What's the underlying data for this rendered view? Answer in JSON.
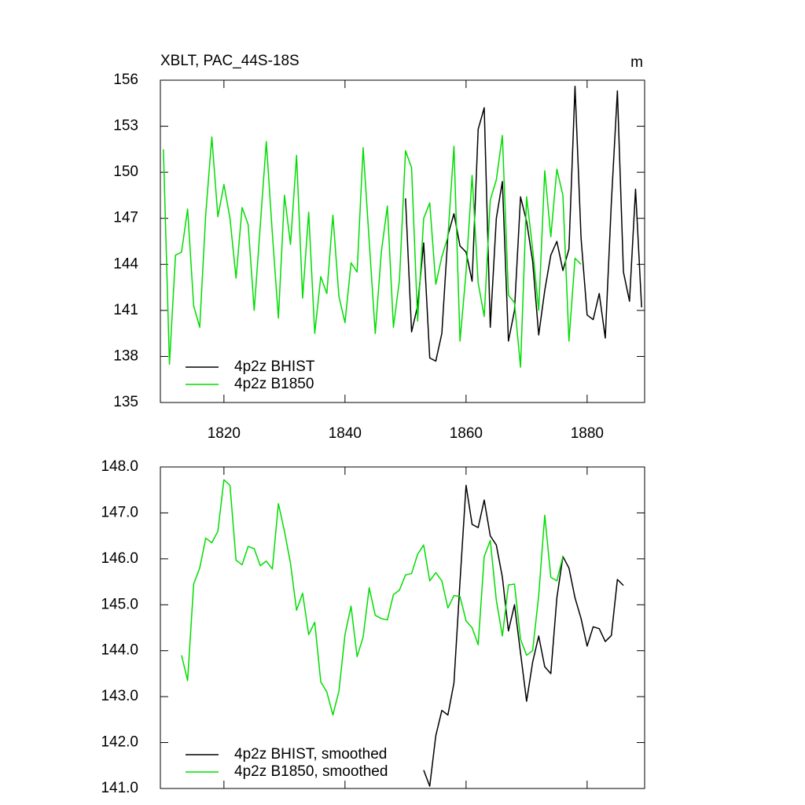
{
  "chart_data": [
    {
      "type": "line",
      "title": "XBLT, PAC_44S-18S",
      "y_units_label": "m",
      "x": [
        1810,
        1811,
        1812,
        1813,
        1814,
        1815,
        1816,
        1817,
        1818,
        1819,
        1820,
        1821,
        1822,
        1823,
        1824,
        1825,
        1826,
        1827,
        1828,
        1829,
        1830,
        1831,
        1832,
        1833,
        1834,
        1835,
        1836,
        1837,
        1838,
        1839,
        1840,
        1841,
        1842,
        1843,
        1844,
        1845,
        1846,
        1847,
        1848,
        1849,
        1850,
        1851,
        1852,
        1853,
        1854,
        1855,
        1856,
        1857,
        1858,
        1859,
        1860,
        1861,
        1862,
        1863,
        1864,
        1865,
        1866,
        1867,
        1868,
        1869,
        1870,
        1871,
        1872,
        1873,
        1874,
        1875,
        1876,
        1877,
        1878,
        1879,
        1880,
        1881,
        1882,
        1883,
        1884,
        1885,
        1886,
        1887,
        1888,
        1889
      ],
      "xlim": [
        1809.5,
        1889.5
      ],
      "xticks": [
        1820,
        1840,
        1860,
        1880
      ],
      "ylim": [
        135,
        156
      ],
      "yticks": [
        135,
        138,
        141,
        144,
        147,
        150,
        153,
        156
      ],
      "series": [
        {
          "name": "4p2z BHIST",
          "color": "#000000",
          "values": [
            null,
            null,
            null,
            null,
            null,
            null,
            null,
            null,
            null,
            null,
            null,
            null,
            null,
            null,
            null,
            null,
            null,
            null,
            null,
            null,
            null,
            null,
            null,
            null,
            null,
            null,
            null,
            null,
            null,
            null,
            null,
            null,
            null,
            null,
            null,
            null,
            null,
            null,
            null,
            null,
            148.3,
            139.6,
            141.3,
            145.4,
            137.9,
            137.7,
            139.5,
            145.9,
            147.3,
            145.2,
            144.8,
            142.9,
            152.8,
            154.2,
            139.9,
            147.0,
            149.4,
            139.0,
            141.0,
            148.4,
            146.8,
            144.2,
            139.4,
            142.3,
            144.6,
            145.5,
            143.6,
            145.0,
            155.6,
            145.7,
            140.7,
            140.4,
            142.1,
            139.2,
            148.0,
            155.3,
            143.5,
            141.6,
            148.9,
            141.2
          ]
        },
        {
          "name": "4p2z B1850",
          "color": "#00dd00",
          "values": [
            151.5,
            137.5,
            144.6,
            144.8,
            147.6,
            141.3,
            139.9,
            147.3,
            152.3,
            147.1,
            149.2,
            147.0,
            143.1,
            147.7,
            146.6,
            141.0,
            146.5,
            152.0,
            146.0,
            140.5,
            148.5,
            145.3,
            151.1,
            141.8,
            147.4,
            139.5,
            143.2,
            142.1,
            147.2,
            141.9,
            140.2,
            144.1,
            143.5,
            151.6,
            145.5,
            139.5,
            144.8,
            147.8,
            139.9,
            143.0,
            151.4,
            150.3,
            140.3,
            147.0,
            148.0,
            142.7,
            144.5,
            145.8,
            151.7,
            139.0,
            143.5,
            149.8,
            142.8,
            140.6,
            148.2,
            149.5,
            152.4,
            142.0,
            141.5,
            137.3,
            148.4,
            145.0,
            141.0,
            150.1,
            145.8,
            150.2,
            148.5,
            139.0,
            144.4,
            144.0,
            null,
            null,
            null,
            null,
            null,
            null,
            null,
            null,
            null,
            null
          ]
        }
      ]
    },
    {
      "type": "line",
      "x": [
        1810,
        1811,
        1812,
        1813,
        1814,
        1815,
        1816,
        1817,
        1818,
        1819,
        1820,
        1821,
        1822,
        1823,
        1824,
        1825,
        1826,
        1827,
        1828,
        1829,
        1830,
        1831,
        1832,
        1833,
        1834,
        1835,
        1836,
        1837,
        1838,
        1839,
        1840,
        1841,
        1842,
        1843,
        1844,
        1845,
        1846,
        1847,
        1848,
        1849,
        1850,
        1851,
        1852,
        1853,
        1854,
        1855,
        1856,
        1857,
        1858,
        1859,
        1860,
        1861,
        1862,
        1863,
        1864,
        1865,
        1866,
        1867,
        1868,
        1869,
        1870,
        1871,
        1872,
        1873,
        1874,
        1875,
        1876,
        1877,
        1878,
        1879,
        1880,
        1881,
        1882,
        1883,
        1884,
        1885,
        1886,
        1887,
        1888,
        1889
      ],
      "xlim": [
        1809.5,
        1889.5
      ],
      "xticks": [
        1820,
        1840,
        1860,
        1880
      ],
      "ylim": [
        141,
        148
      ],
      "yticks": [
        {
          "value": 141,
          "label": "141.0"
        },
        {
          "value": 142,
          "label": "142.0"
        },
        {
          "value": 143,
          "label": "143.0"
        },
        {
          "value": 144,
          "label": "144.0"
        },
        {
          "value": 145,
          "label": "145.0"
        },
        {
          "value": 146,
          "label": "146.0"
        },
        {
          "value": 147,
          "label": "147.0"
        },
        {
          "value": 148,
          "label": "148.0"
        }
      ],
      "series": [
        {
          "name": "4p2z BHIST, smoothed",
          "color": "#000000",
          "values": [
            null,
            null,
            null,
            null,
            null,
            null,
            null,
            null,
            null,
            null,
            null,
            null,
            null,
            null,
            null,
            null,
            null,
            null,
            null,
            null,
            null,
            null,
            null,
            null,
            null,
            null,
            null,
            null,
            null,
            null,
            null,
            null,
            null,
            null,
            null,
            null,
            null,
            null,
            null,
            null,
            null,
            null,
            null,
            141.4,
            141.05,
            142.15,
            142.7,
            142.6,
            143.3,
            145.5,
            147.6,
            146.75,
            146.68,
            147.28,
            146.5,
            146.3,
            145.6,
            144.43,
            145.0,
            143.95,
            142.9,
            143.75,
            144.32,
            143.65,
            143.5,
            145.15,
            146.05,
            145.8,
            145.15,
            144.7,
            144.1,
            144.52,
            144.48,
            144.2,
            144.33,
            145.55,
            145.42,
            null,
            null,
            null
          ]
        },
        {
          "name": "4p2z B1850, smoothed",
          "color": "#00dd00",
          "values": [
            null,
            null,
            null,
            143.9,
            143.35,
            145.45,
            145.8,
            146.45,
            146.35,
            146.6,
            147.72,
            147.6,
            145.97,
            145.87,
            146.27,
            146.22,
            145.85,
            145.95,
            145.78,
            147.2,
            146.6,
            145.9,
            144.88,
            145.25,
            144.35,
            144.62,
            143.32,
            143.1,
            142.6,
            143.12,
            144.35,
            144.97,
            143.87,
            144.3,
            145.37,
            144.77,
            144.7,
            144.67,
            145.22,
            145.32,
            145.65,
            145.68,
            146.1,
            146.3,
            145.52,
            145.7,
            145.52,
            144.93,
            145.2,
            145.18,
            144.65,
            144.5,
            144.13,
            146.05,
            146.4,
            145.1,
            144.32,
            145.43,
            145.45,
            144.25,
            143.9,
            144.0,
            145.2,
            146.95,
            145.6,
            145.52,
            146.05,
            null,
            null,
            null,
            null,
            null,
            null,
            null,
            null,
            null,
            null,
            null,
            null,
            null
          ]
        }
      ]
    }
  ]
}
